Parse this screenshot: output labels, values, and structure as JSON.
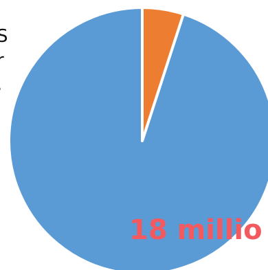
{
  "chart_data": {
    "type": "pie",
    "start_angle_deg": 0,
    "direction": "counterclockwise",
    "slices": [
      {
        "value": 95,
        "color": "#5b9bd5"
      },
      {
        "value": 5,
        "color": "#ed7d31"
      }
    ],
    "slice_border_color": "#ffffff",
    "title": "",
    "legend": "none"
  },
  "left_text": {
    "line1": "S",
    "line2": "r",
    "line3": "."
  },
  "annotation": {
    "text": "18 millio",
    "color": "#f25a5f"
  }
}
